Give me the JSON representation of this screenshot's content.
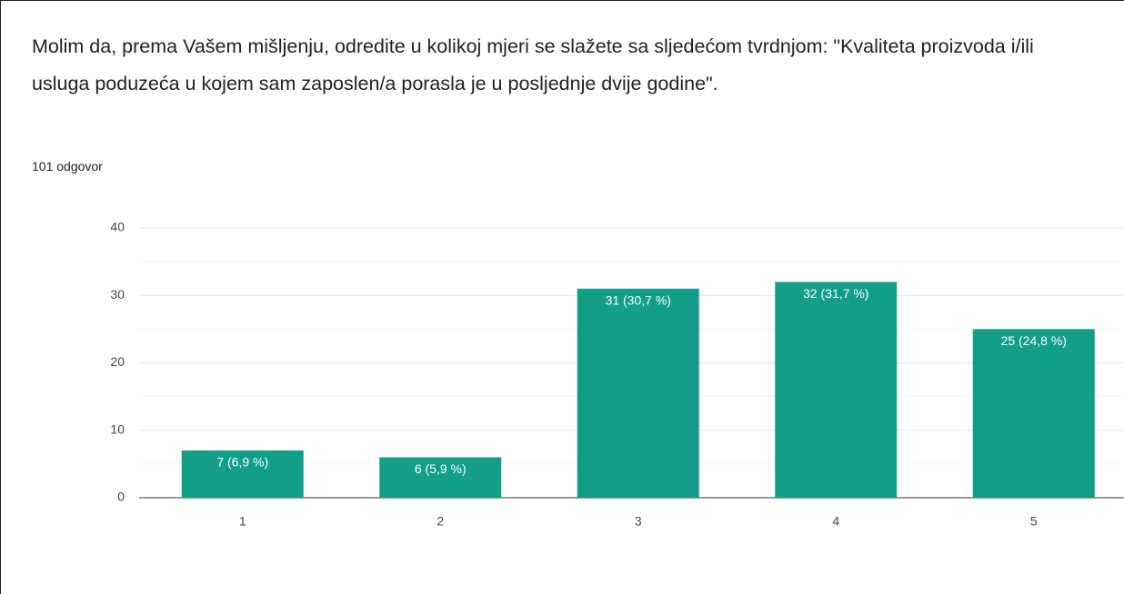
{
  "chart_data": {
    "type": "bar",
    "title": "Molim da, prema Vašem mišljenju, odredite u kolikoj mjeri se slažete sa sljedećom tvrdnjom: \"Kvaliteta proizvoda i/ili usluga poduzeća u kojem sam zaposlen/a porasla je u posljednje dvije godine\".",
    "subtitle": "101 odgovor",
    "categories": [
      "1",
      "2",
      "3",
      "4",
      "5"
    ],
    "values": [
      7,
      6,
      31,
      32,
      25
    ],
    "value_labels": [
      "7 (6,9 %)",
      "6 (5,9 %)",
      "31 (30,7 %)",
      "32 (31,7 %)",
      "25 (24,8 %)"
    ],
    "color": "#129e87",
    "ylim": [
      0,
      40
    ],
    "yticks": [
      0,
      10,
      20,
      30,
      40
    ],
    "minor_yticks": [
      5,
      15,
      25,
      35
    ],
    "grid": true
  }
}
